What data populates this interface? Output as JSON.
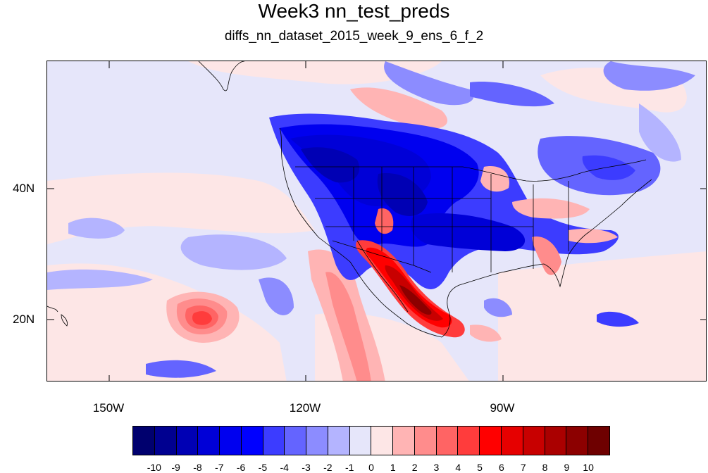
{
  "title": "Week3 nn_test_preds",
  "subtitle": "diffs_nn_dataset_2015_week_9_ens_6_f_2",
  "map": {
    "lat_labels": [
      "40N",
      "20N"
    ],
    "lon_labels": [
      "150W",
      "120W",
      "90W"
    ]
  },
  "colorbar": {
    "colors": [
      "#00006e",
      "#000090",
      "#0000b4",
      "#0000d7",
      "#0000ef",
      "#0000ff",
      "#3c3cff",
      "#6464ff",
      "#8c8cff",
      "#b4b4ff",
      "#e6e6fa",
      "#fde6e6",
      "#ffb4b4",
      "#ff8c8c",
      "#ff6464",
      "#ff3c3c",
      "#ff0000",
      "#e60000",
      "#c80000",
      "#aa0000",
      "#8c0000",
      "#6e0000"
    ],
    "labels": [
      "-10",
      "-9",
      "-8",
      "-7",
      "-6",
      "-5",
      "-4",
      "-3",
      "-2",
      "-1",
      "0",
      "1",
      "2",
      "3",
      "4",
      "5",
      "6",
      "7",
      "8",
      "9",
      "10"
    ]
  }
}
